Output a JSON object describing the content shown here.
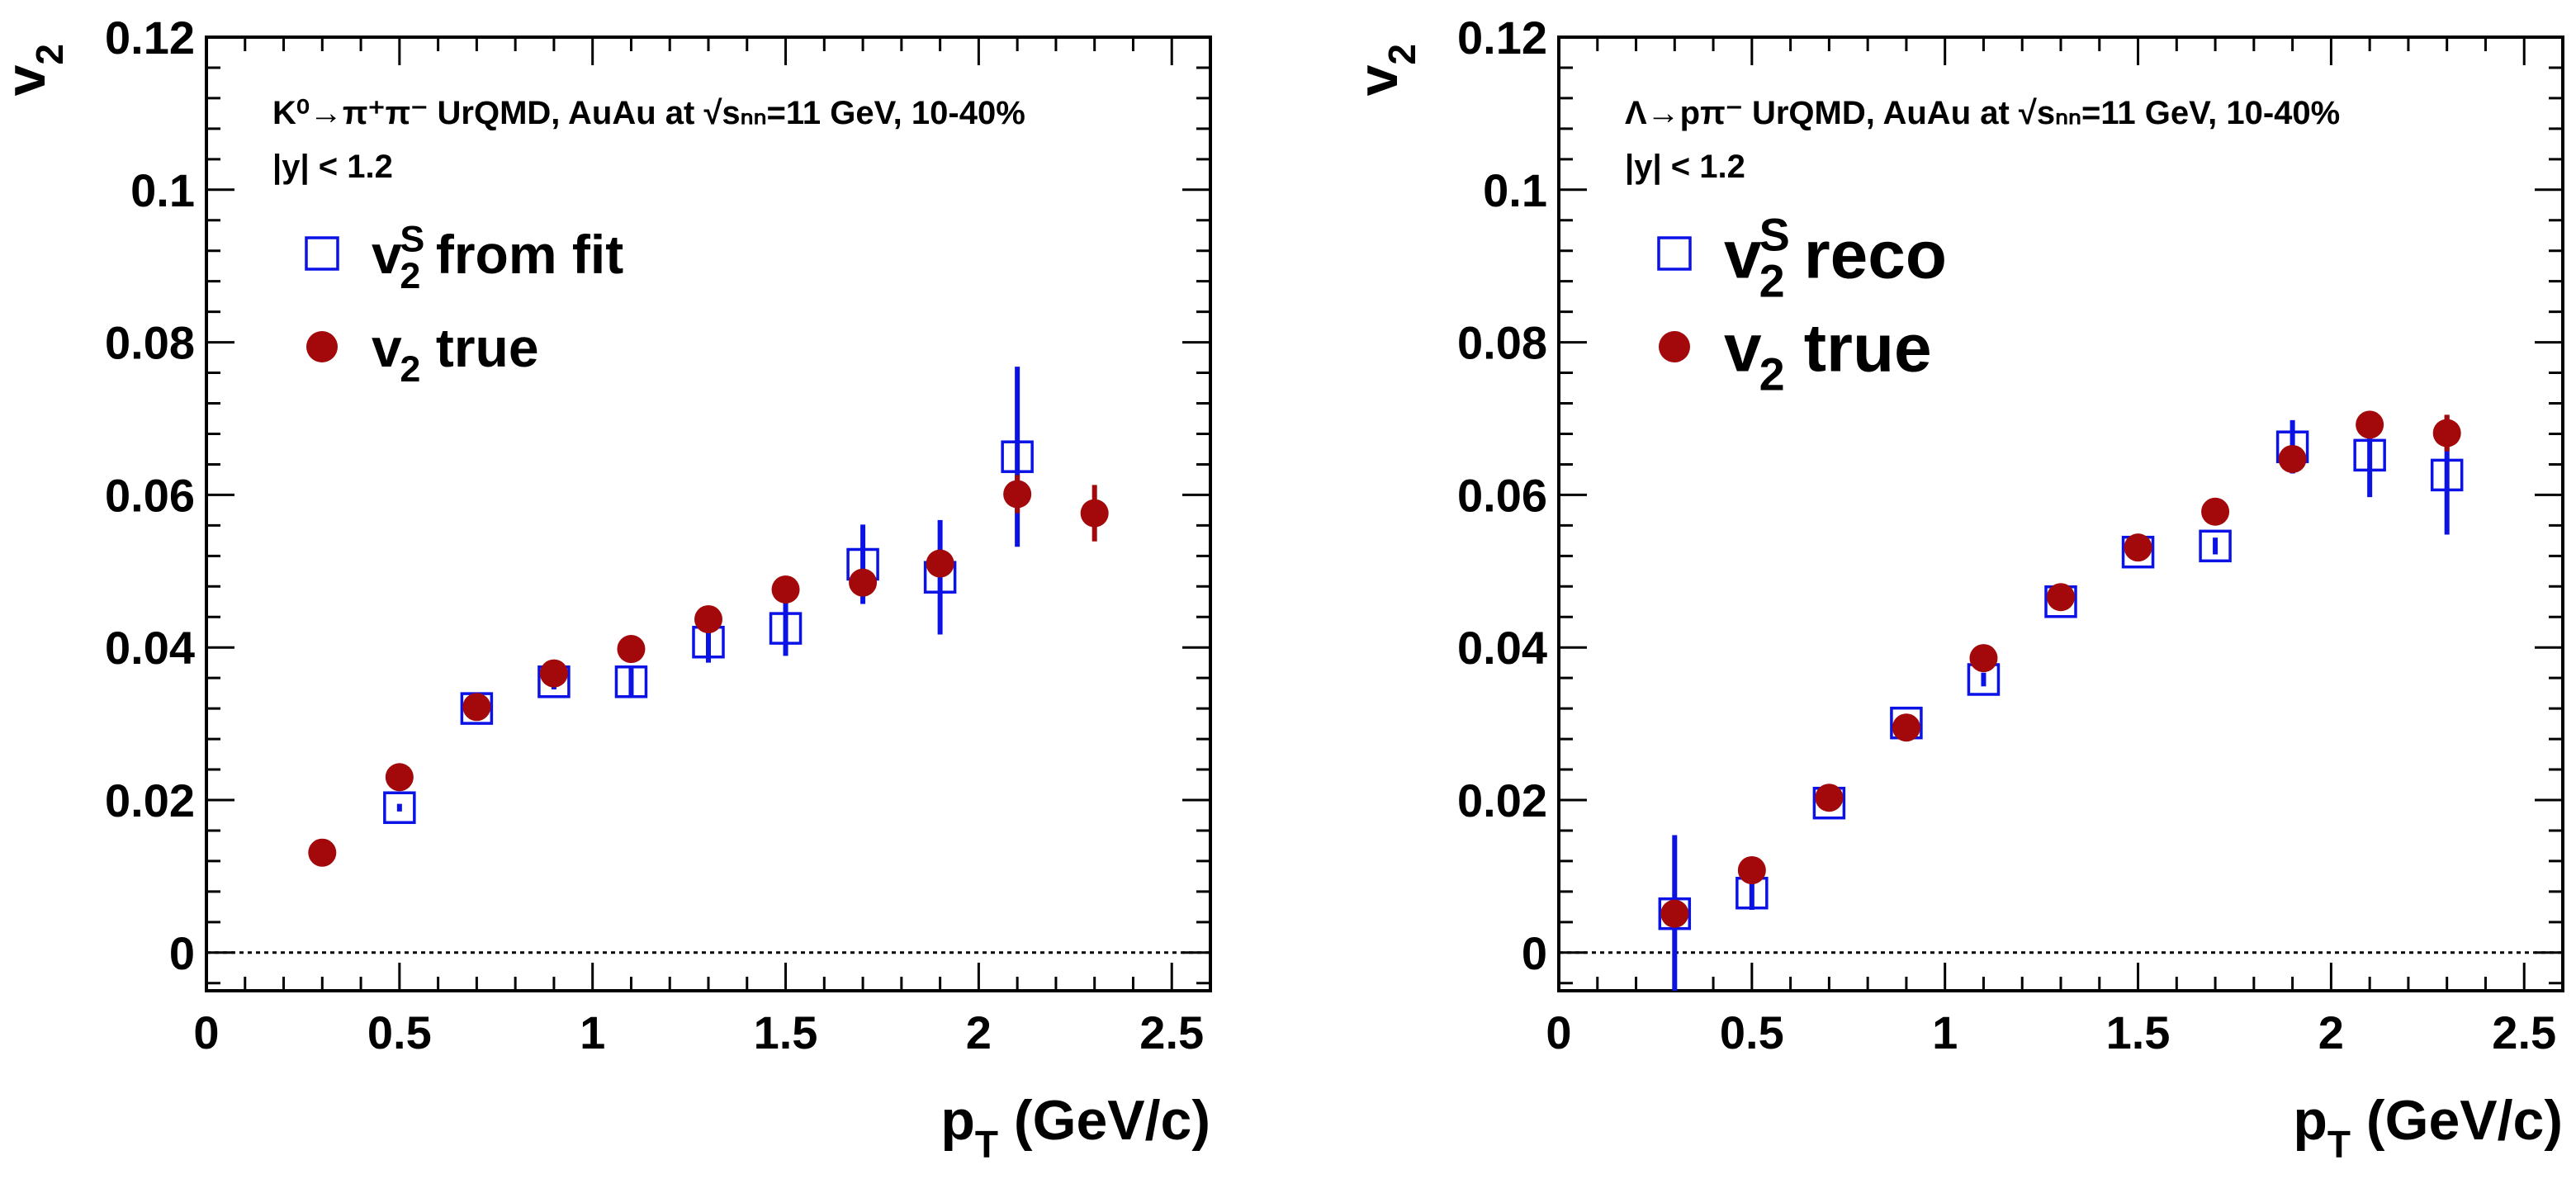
{
  "chart_data": [
    {
      "type": "scatter",
      "process_label": "K⁰→π⁺π⁻ UrQMD, AuAu at √sₙₙ=11 GeV, 10-40%",
      "rapidity_cut": "|y| < 1.2",
      "xlabel": "p_T (GeV/c)",
      "ylabel": "v_2",
      "xlim": [
        0,
        2.6
      ],
      "ylim": [
        -0.005,
        0.12
      ],
      "x_ticks": [
        0,
        0.5,
        1,
        1.5,
        2,
        2.5
      ],
      "x_tick_labels": [
        "0",
        "0.5",
        "1",
        "1.5",
        "2",
        "2.5"
      ],
      "y_ticks": [
        0,
        0.02,
        0.04,
        0.06,
        0.08,
        0.1,
        0.12
      ],
      "y_tick_labels": [
        "0",
        "0.02",
        "0.04",
        "0.06",
        "0.08",
        "0.1",
        "0.12"
      ],
      "zero_line": true,
      "series": [
        {
          "name": "v2S from fit",
          "legend_label": "from fit",
          "marker": "open-square",
          "color": "#0a12e6",
          "x": [
            0.5,
            0.7,
            0.9,
            1.1,
            1.3,
            1.5,
            1.7,
            1.9,
            2.1
          ],
          "y": [
            0.019,
            0.032,
            0.0355,
            0.0355,
            0.0407,
            0.0425,
            0.0509,
            0.0492,
            0.065
          ],
          "err": [
            0.0005,
            0.001,
            0.001,
            0.0021,
            0.0027,
            0.0036,
            0.0052,
            0.0075,
            0.0118
          ]
        },
        {
          "name": "v2 true",
          "legend_label": "true",
          "marker": "filled-circle",
          "color": "#a3080b",
          "x": [
            0.3,
            0.5,
            0.7,
            0.9,
            1.1,
            1.3,
            1.5,
            1.7,
            1.9,
            2.1,
            2.3
          ],
          "y": [
            0.0131,
            0.023,
            0.0322,
            0.0366,
            0.0398,
            0.0437,
            0.0476,
            0.0485,
            0.051,
            0.0601,
            0.0576
          ],
          "err": [
            0.0004,
            0.0004,
            0.0005,
            0.0005,
            0.0006,
            0.0008,
            0.001,
            0.0013,
            0.0016,
            0.0025,
            0.0037
          ]
        }
      ]
    },
    {
      "type": "scatter",
      "process_label": "Λ→pπ⁻ UrQMD, AuAu at √sₙₙ=11 GeV, 10-40%",
      "rapidity_cut": "|y| < 1.2",
      "xlabel": "p_T (GeV/c)",
      "ylabel": "v_2",
      "xlim": [
        0,
        2.6
      ],
      "ylim": [
        -0.005,
        0.12
      ],
      "x_ticks": [
        0,
        0.5,
        1,
        1.5,
        2,
        2.5
      ],
      "x_tick_labels": [
        "0",
        "0.5",
        "1",
        "1.5",
        "2",
        "2.5"
      ],
      "y_ticks": [
        0,
        0.02,
        0.04,
        0.06,
        0.08,
        0.1,
        0.12
      ],
      "y_tick_labels": [
        "0",
        "0.02",
        "0.04",
        "0.06",
        "0.08",
        "0.1",
        "0.12"
      ],
      "zero_line": true,
      "series": [
        {
          "name": "v2S reco",
          "legend_label": "reco",
          "marker": "open-square",
          "color": "#0a12e6",
          "x": [
            0.3,
            0.5,
            0.7,
            0.9,
            1.1,
            1.3,
            1.5,
            1.7,
            1.9,
            2.1,
            2.3
          ],
          "y": [
            0.0051,
            0.0078,
            0.0196,
            0.0301,
            0.0358,
            0.046,
            0.0525,
            0.0533,
            0.0663,
            0.0652,
            0.0626
          ],
          "err": [
            0.0103,
            0.0022,
            0.0009,
            0.0008,
            0.0009,
            0.0009,
            0.0008,
            0.0011,
            0.0035,
            0.0055,
            0.0078
          ]
        },
        {
          "name": "v2 true",
          "legend_label": "true",
          "marker": "filled-circle",
          "color": "#a3080b",
          "x": [
            0.3,
            0.5,
            0.7,
            0.9,
            1.1,
            1.3,
            1.5,
            1.7,
            1.9,
            2.1,
            2.3
          ],
          "y": [
            0.0051,
            0.0108,
            0.0203,
            0.0295,
            0.0386,
            0.0466,
            0.0531,
            0.0578,
            0.0647,
            0.0692,
            0.0681
          ],
          "err": [
            0.0004,
            0.0004,
            0.0004,
            0.0004,
            0.0004,
            0.0005,
            0.0005,
            0.0006,
            0.0008,
            0.0011,
            0.0024
          ]
        }
      ]
    }
  ]
}
